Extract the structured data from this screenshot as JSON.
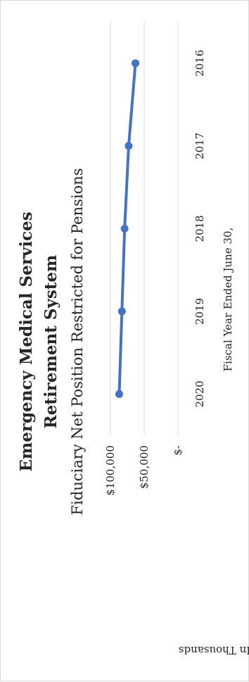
{
  "chart_data": {
    "type": "line",
    "orientation": "rotated-90-ccw",
    "title_line1": "Emergency Medical Services",
    "title_line2": "Retirement System",
    "subtitle": "Fiduciary Net Position Restricted for Pensions",
    "xlabel": "Fiscal Year Ended June 30,",
    "ylabel": "In Thousands",
    "categories": [
      "2020",
      "2019",
      "2018",
      "2017",
      "2016"
    ],
    "series": [
      {
        "values": [
          87000,
          83000,
          79000,
          73000,
          63000
        ]
      }
    ],
    "ylim": [
      0,
      100000
    ],
    "yticks": [
      {
        "value": 100000,
        "label": "$100,000"
      },
      {
        "value": 50000,
        "label": "$50,000"
      },
      {
        "value": 0,
        "label": "$-"
      }
    ],
    "grid": true,
    "line_color": "#4472c4",
    "grid_color": "#d9d9d9"
  }
}
